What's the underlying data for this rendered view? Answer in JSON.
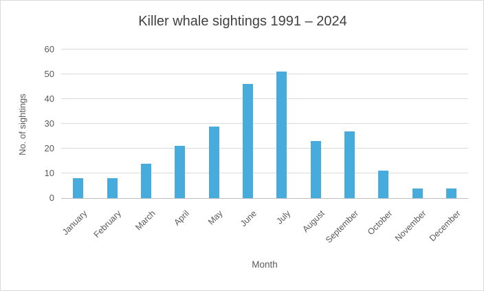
{
  "chart_data": {
    "type": "bar",
    "title": "Killer whale sightings 1991 – 2024",
    "xlabel": "Month",
    "ylabel": "No. of sightings",
    "categories": [
      "January",
      "February",
      "March",
      "April",
      "May",
      "June",
      "July",
      "August",
      "September",
      "October",
      "November",
      "December"
    ],
    "values": [
      8,
      8,
      14,
      21,
      29,
      46,
      51,
      23,
      27,
      11,
      4,
      4
    ],
    "ylim": [
      0,
      60
    ],
    "ytick_interval": 10,
    "yticks": [
      0,
      10,
      20,
      30,
      40,
      50,
      60
    ],
    "grid": true,
    "legend": false,
    "colors": {
      "bar": "#47ACDC",
      "gridline": "#D9D9D9",
      "axis_line": "#BFBFBF",
      "title_text": "#404040",
      "label_text": "#595959",
      "background": "#FFFFFF",
      "frame_border": "#D9D9D9"
    }
  }
}
